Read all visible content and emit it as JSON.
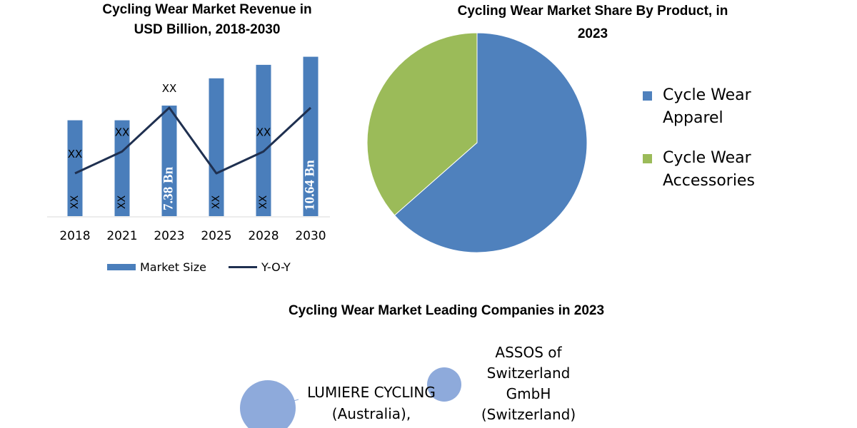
{
  "bar_chart": {
    "title_lines": [
      "Cycling Wear Market Revenue in",
      "USD Billion, 2018-2030"
    ],
    "legend": {
      "bar_label": "Market Size",
      "line_label": "Y-O-Y"
    }
  },
  "pie_chart": {
    "title_lines": [
      "Cycling Wear Market Share By Product, in",
      "2023"
    ]
  },
  "companies": {
    "title": "Cycling Wear Market Leading Companies in 2023",
    "bubbles": [
      {
        "label_lines": [
          "LUMIERE CYCLING",
          "(Australia),"
        ],
        "color": "#8eaadb"
      },
      {
        "label_lines": [
          "ASSOS of",
          "Switzerland",
          "GmbH",
          "(Switzerland)"
        ],
        "color": "#8eaadb"
      }
    ]
  },
  "chart_data": [
    {
      "type": "bar",
      "title": "Cycling Wear Market Revenue in USD Billion, 2018-2030",
      "categories": [
        "2018",
        "2021",
        "2023",
        "2025",
        "2028",
        "2030"
      ],
      "series": [
        {
          "name": "Market Size",
          "values": [
            6.4,
            6.4,
            7.38,
            9.2,
            10.1,
            10.64
          ],
          "bar_labels": [
            "XX",
            "XX",
            "7.38 Bn",
            "XX",
            "XX",
            "10.64 Bn"
          ],
          "color": "#4a7ebb"
        },
        {
          "name": "Y-O-Y",
          "values": [
            4,
            5,
            7,
            4,
            5,
            7
          ],
          "point_labels": [
            "XX",
            "XX",
            "XX",
            "",
            "XX",
            ""
          ],
          "color": "#1f3050"
        }
      ],
      "legend_position": "bottom",
      "grid": false
    },
    {
      "type": "pie",
      "title": "Cycling Wear Market Share By Product, in 2023",
      "labels": [
        "Cycle Wear Apparel",
        "Cycle Wear Accessories"
      ],
      "label_lines": [
        [
          "Cycle Wear",
          "Apparel"
        ],
        [
          "Cycle Wear",
          "Accessories"
        ]
      ],
      "values": [
        63.5,
        36.5
      ],
      "colors": [
        "#4f81bd",
        "#9bbb59"
      ],
      "legend_position": "right"
    }
  ]
}
